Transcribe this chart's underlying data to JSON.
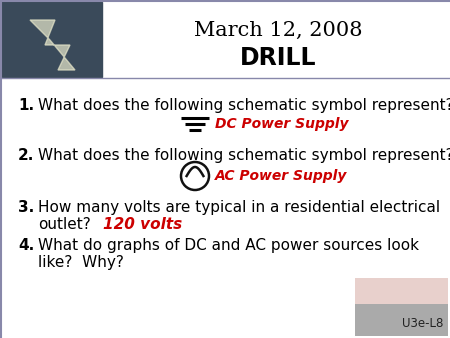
{
  "title": "March 12, 2008",
  "subtitle": "DRILL",
  "bg_color": "#ffffff",
  "border_left_color": "#8888aa",
  "border_top_color": "#8888aa",
  "title_color": "#000000",
  "subtitle_color": "#000000",
  "text_color": "#000000",
  "answer_color": "#cc0000",
  "watermark": "U3e-L8",
  "items": [
    "What does the following schematic symbol represent?",
    "What does the following schematic symbol represent?",
    "How many volts are typical in a residential electrical",
    "outlet?",
    "What do graphs of DC and AC power sources look",
    "like?  Why?"
  ],
  "answers": [
    "DC Power Supply",
    "AC Power Supply",
    "120 volts"
  ],
  "img_box_color": "#666666",
  "img_box2_bg": "#ddbbbb",
  "img_box2_fg": "#999999"
}
